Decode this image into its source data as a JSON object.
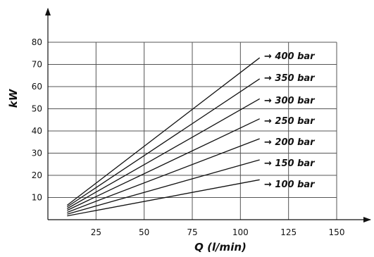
{
  "chart_data": {
    "type": "line",
    "title": "",
    "xlabel": "Q (l/min)",
    "ylabel": "kW",
    "xlim": [
      0,
      150
    ],
    "ylim": [
      0,
      80
    ],
    "x_ticks": [
      "25",
      "50",
      "75",
      "100",
      "125",
      "150"
    ],
    "y_ticks": [
      "10",
      "20",
      "30",
      "40",
      "50",
      "60",
      "70",
      "80"
    ],
    "grid": true,
    "legend_position": "right, inline with line ends",
    "series": [
      {
        "name": "400 bar",
        "label": "→ 400 bar",
        "x": [
          10,
          110
        ],
        "y": [
          6.5,
          73
        ]
      },
      {
        "name": "350 bar",
        "label": "→ 350 bar",
        "x": [
          10,
          110
        ],
        "y": [
          5.8,
          63.5
        ]
      },
      {
        "name": "300 bar",
        "label": "→ 300 bar",
        "x": [
          10,
          110
        ],
        "y": [
          5.0,
          54.5
        ]
      },
      {
        "name": "250 bar",
        "label": "→ 250 bar",
        "x": [
          10,
          110
        ],
        "y": [
          4.2,
          45.5
        ]
      },
      {
        "name": "200 bar",
        "label": "→ 200 bar",
        "x": [
          10,
          110
        ],
        "y": [
          3.3,
          36.5
        ]
      },
      {
        "name": "150 bar",
        "label": "→ 150 bar",
        "x": [
          10,
          110
        ],
        "y": [
          2.5,
          27
        ]
      },
      {
        "name": "100 bar",
        "label": "→ 100 bar",
        "x": [
          10,
          110
        ],
        "y": [
          1.7,
          18
        ]
      }
    ]
  }
}
